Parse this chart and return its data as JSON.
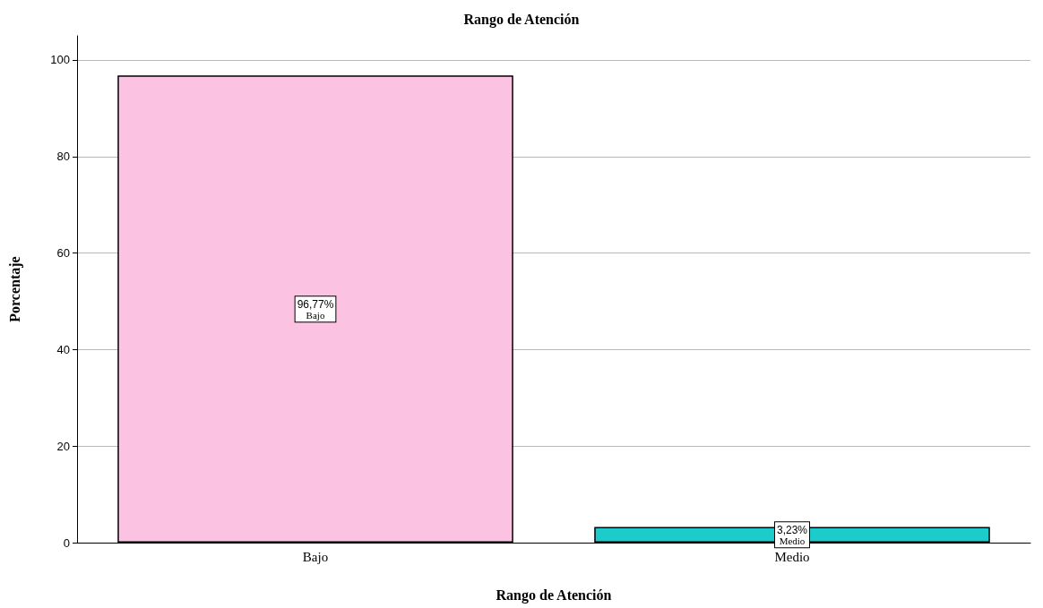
{
  "chart_data": {
    "type": "bar",
    "title": "Rango de Atención",
    "xlabel": "Rango de Atención",
    "ylabel": "Porcentaje",
    "categories": [
      "Bajo",
      "Medio"
    ],
    "values": [
      96.77,
      3.23
    ],
    "colors": [
      "#fbc2e2",
      "#1ecbcb"
    ],
    "value_labels": [
      "96,77%",
      "3,23%"
    ],
    "ylim": [
      0,
      105
    ],
    "yticks": [
      0,
      20,
      40,
      60,
      80,
      100
    ],
    "grid": "y"
  }
}
